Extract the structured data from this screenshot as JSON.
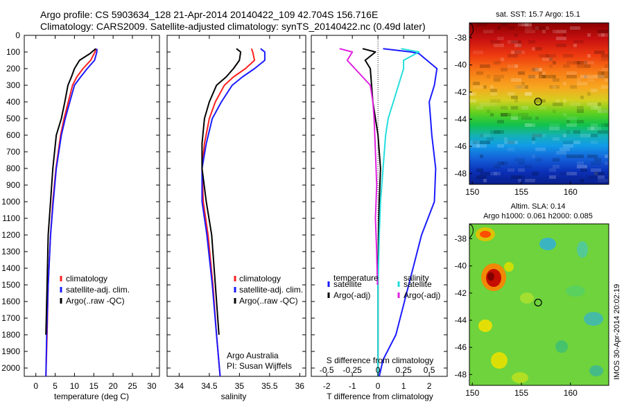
{
  "header": {
    "line1": "Argo profile: CS 5903634_128 21-Apr-2014 20140422_109 42.704S 156.716E",
    "line2": "Climatology: CARS2009. Satellite-adjusted climatology: synTS_20140422.nc (0.49d later)"
  },
  "credit": {
    "line1": "Argo Australia",
    "line2": "PI: Susan Wijffels"
  },
  "side_stamp": "IMOS 30-Apr-2014 20:02:19",
  "colors": {
    "red": "#ff2020",
    "blue": "#1a1aff",
    "black": "#000000",
    "cyan": "#22dddd",
    "magenta": "#e020e0",
    "gray": "#555555"
  },
  "chart_data": [
    {
      "type": "line",
      "xlabel": "temperature (deg C)",
      "ylabel": "",
      "xlim": [
        -3,
        32
      ],
      "ylim": [
        2050,
        0
      ],
      "y_reversed": true,
      "xticks": [
        0,
        5,
        10,
        15,
        20,
        25,
        30
      ],
      "yticks": [
        0,
        100,
        200,
        300,
        400,
        500,
        600,
        700,
        800,
        900,
        1000,
        1100,
        1200,
        1300,
        1400,
        1500,
        1600,
        1700,
        1800,
        1900,
        2000
      ],
      "legend": [
        "climatology",
        "satellite-adj. clim.",
        "Argo(..raw -QC)"
      ],
      "legend_placement": "lower-middle",
      "series": [
        {
          "name": "climatology",
          "color": "red",
          "x": [
            15.6,
            15.3,
            14.2,
            12.2,
            10.6,
            9.5,
            8.4,
            7.3,
            6.4,
            5.2,
            4.4,
            3.8,
            3.2,
            2.9,
            2.6
          ],
          "y": [
            80,
            100,
            150,
            200,
            250,
            300,
            400,
            500,
            600,
            800,
            1000,
            1200,
            1500,
            1800,
            2050
          ]
        },
        {
          "name": "satellite-adj. clim.",
          "color": "blue",
          "x": [
            15.8,
            15.8,
            15.2,
            13.3,
            11.6,
            10.0,
            8.8,
            7.6,
            6.6,
            5.3,
            4.5,
            3.8,
            3.2,
            2.8,
            2.6
          ],
          "y": [
            80,
            100,
            150,
            200,
            250,
            300,
            400,
            500,
            600,
            800,
            1000,
            1200,
            1500,
            1800,
            2050
          ]
        },
        {
          "name": "Argo(..raw -QC)",
          "color": "black",
          "x": [
            15.5,
            14.0,
            11.3,
            10.0,
            9.2,
            8.3,
            7.5,
            6.6,
            5.3,
            4.4,
            3.8,
            3.2,
            2.9,
            2.6
          ],
          "y": [
            80,
            110,
            150,
            200,
            250,
            300,
            400,
            500,
            600,
            800,
            1000,
            1200,
            1500,
            1800
          ]
        }
      ]
    },
    {
      "type": "line",
      "xlabel": "salinity",
      "ylabel": "",
      "xlim": [
        33.8,
        36.1
      ],
      "ylim": [
        2050,
        0
      ],
      "y_reversed": true,
      "xticks": [
        34,
        34.5,
        35,
        35.5,
        36
      ],
      "legend": [
        "climatology",
        "satellite-adj. clim.",
        "Argo(..raw -QC)"
      ],
      "legend_placement": "lower-right",
      "series": [
        {
          "name": "climatology",
          "color": "red",
          "x": [
            35.2,
            35.22,
            35.25,
            35.1,
            34.9,
            34.75,
            34.6,
            34.5,
            34.42,
            34.38,
            34.4,
            34.48,
            34.56,
            34.62,
            34.68
          ],
          "y": [
            80,
            100,
            150,
            200,
            250,
            300,
            400,
            500,
            650,
            800,
            1000,
            1200,
            1500,
            1800,
            2050
          ]
        },
        {
          "name": "satellite-adj. clim.",
          "color": "blue",
          "x": [
            35.35,
            35.42,
            35.42,
            35.25,
            35.05,
            34.88,
            34.7,
            34.55,
            34.45,
            34.38,
            34.38,
            34.46,
            34.55,
            34.62,
            34.68
          ],
          "y": [
            80,
            100,
            150,
            200,
            250,
            300,
            400,
            500,
            650,
            800,
            1000,
            1200,
            1500,
            1800,
            2050
          ]
        },
        {
          "name": "Argo(..raw -QC)",
          "color": "black",
          "x": [
            34.95,
            35.02,
            35.0,
            34.9,
            34.78,
            34.62,
            34.5,
            34.42,
            34.38,
            34.38,
            34.45,
            34.54,
            34.6,
            34.66
          ],
          "y": [
            80,
            100,
            150,
            200,
            250,
            300,
            400,
            500,
            650,
            800,
            1000,
            1200,
            1500,
            1800
          ]
        }
      ]
    },
    {
      "type": "line",
      "xlabel": "T difference from climatology",
      "x2label": "S difference from climatology",
      "xlim": [
        -2.6,
        2.7
      ],
      "ylim": [
        2050,
        0
      ],
      "y_reversed": true,
      "xticks": [
        -2,
        -1,
        0,
        1,
        2
      ],
      "x2ticks": [
        "-0.5",
        "-0.25",
        "0",
        "0.25",
        "0.5"
      ],
      "x2tick_positions": [
        -2,
        -1,
        0,
        1,
        2
      ],
      "legend_groups": [
        {
          "title": "temperature",
          "items": [
            "satellite",
            "Argo(-adj)"
          ]
        },
        {
          "title": "salinity",
          "items": [
            "satellite",
            "Argo(-adj)"
          ]
        }
      ],
      "legend_placement": "middle",
      "series": [
        {
          "name": "temperature satellite",
          "color": "blue",
          "x": [
            0.2,
            1.3,
            1.6,
            2.3,
            2.2,
            2.0,
            2.05,
            2.1,
            2.25,
            2.2,
            1.7,
            1.2,
            0.7,
            0.2,
            0.05
          ],
          "y": [
            80,
            100,
            110,
            200,
            300,
            400,
            500,
            600,
            800,
            1000,
            1200,
            1500,
            1800,
            1950,
            2050
          ]
        },
        {
          "name": "temperature Argo(-adj)",
          "color": "black",
          "x": [
            -0.6,
            -0.1,
            -0.5,
            -0.3,
            -0.25,
            -0.2,
            -0.1,
            0.0,
            0.05,
            0.1,
            0.05,
            0.02,
            0.0,
            0.0,
            0.0
          ],
          "y": [
            80,
            100,
            150,
            200,
            300,
            400,
            500,
            600,
            700,
            800,
            1000,
            1200,
            1500,
            1800,
            2050
          ]
        },
        {
          "name": "salinity satellite",
          "color": "cyan",
          "x": [
            0.9,
            1.6,
            1.0,
            1.0,
            0.8,
            0.6,
            0.4,
            0.3,
            0.2,
            0.1,
            0.05,
            0.0,
            0.0
          ],
          "y": [
            80,
            100,
            150,
            200,
            300,
            400,
            500,
            600,
            800,
            1000,
            1200,
            1500,
            2050
          ]
        },
        {
          "name": "salinity Argo(-adj)",
          "color": "magenta",
          "x": [
            -1.5,
            -1.0,
            -1.2,
            -0.9,
            -0.3,
            -0.2,
            -0.15,
            -0.1,
            -0.05,
            -0.1,
            -0.05,
            -0.02
          ],
          "y": [
            80,
            100,
            150,
            200,
            300,
            400,
            500,
            700,
            900,
            1100,
            1300,
            1500
          ]
        }
      ]
    },
    {
      "type": "heatmap",
      "title": "sat. SST: 15.7  Argo: 15.1",
      "xlim": [
        149.7,
        163.9
      ],
      "ylim": [
        -48.8,
        -36.9
      ],
      "xticks": [
        150,
        155,
        160
      ],
      "yticks": [
        -38,
        -40,
        -42,
        -44,
        -46,
        -48
      ],
      "marker": {
        "lon": 156.7,
        "lat": -42.7
      },
      "colormap": "jet"
    },
    {
      "type": "heatmap",
      "title": "Altim. SLA: 0.14",
      "subtitle": "Argo h1000: 0.061  h2000: 0.085",
      "xlim": [
        149.7,
        163.9
      ],
      "ylim": [
        -48.8,
        -36.9
      ],
      "xticks": [
        150,
        155,
        160
      ],
      "yticks": [
        -38,
        -40,
        -42,
        -44,
        -46,
        -48
      ],
      "marker": {
        "lon": 156.7,
        "lat": -42.7
      },
      "colormap": "jet"
    }
  ]
}
